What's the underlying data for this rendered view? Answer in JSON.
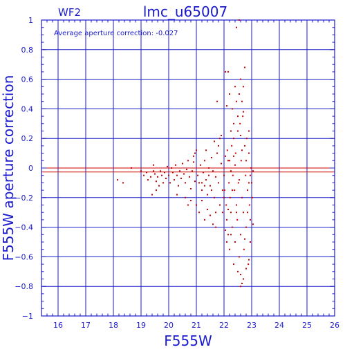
{
  "chart_data": {
    "type": "scatter",
    "title": "lmc_u65007",
    "chip": "WF2",
    "xlabel": "F555W",
    "ylabel": "F555W aperture correction",
    "annotation": "Average aperture correction: -0.027",
    "xlim": [
      15.4,
      26
    ],
    "ylim": [
      -1,
      1
    ],
    "xticks": [
      16,
      17,
      18,
      19,
      20,
      21,
      22,
      23,
      24,
      25,
      26
    ],
    "yticks": [
      -1,
      -0.8,
      -0.6,
      -0.4,
      -0.2,
      0,
      0.2,
      0.4,
      0.6,
      0.8,
      1
    ],
    "ytick_labels": [
      "−1",
      "−0.8",
      "−0.6",
      "−0.4",
      "−0.2",
      "0",
      "0.2",
      "0.4",
      "0.6",
      "0.8",
      "1"
    ],
    "grid": true,
    "reference_lines": [
      {
        "name": "zero",
        "y": 0,
        "color": "#cc0000"
      },
      {
        "name": "average",
        "y": -0.027,
        "color": "#cc0000"
      }
    ],
    "axis_color": "#1a1acc",
    "point_color": "#cc0000",
    "points": [
      [
        18.15,
        -0.08
      ],
      [
        18.35,
        -0.1
      ],
      [
        18.65,
        0.0
      ],
      [
        19.0,
        -0.02
      ],
      [
        19.1,
        -0.05
      ],
      [
        19.2,
        -0.03
      ],
      [
        19.25,
        -0.08
      ],
      [
        19.35,
        -0.06
      ],
      [
        19.45,
        -0.02
      ],
      [
        19.45,
        0.02
      ],
      [
        19.5,
        -0.04
      ],
      [
        19.55,
        -0.09
      ],
      [
        19.6,
        -0.06
      ],
      [
        19.65,
        -0.12
      ],
      [
        19.7,
        -0.02
      ],
      [
        19.75,
        -0.05
      ],
      [
        19.8,
        -0.1
      ],
      [
        19.85,
        -0.03
      ],
      [
        19.9,
        -0.07
      ],
      [
        19.95,
        0.01
      ],
      [
        19.4,
        -0.18
      ],
      [
        19.55,
        -0.15
      ],
      [
        20.0,
        -0.05
      ],
      [
        20.05,
        -0.1
      ],
      [
        20.1,
        0.0
      ],
      [
        20.15,
        -0.03
      ],
      [
        20.2,
        -0.08
      ],
      [
        20.25,
        0.02
      ],
      [
        20.3,
        -0.05
      ],
      [
        20.35,
        -0.12
      ],
      [
        20.4,
        -0.02
      ],
      [
        20.45,
        -0.07
      ],
      [
        20.5,
        0.03
      ],
      [
        20.55,
        -0.04
      ],
      [
        20.6,
        -0.1
      ],
      [
        20.65,
        -0.01
      ],
      [
        20.7,
        0.05
      ],
      [
        20.75,
        -0.06
      ],
      [
        20.8,
        -0.14
      ],
      [
        20.85,
        -0.02
      ],
      [
        20.9,
        0.04
      ],
      [
        20.95,
        -0.09
      ],
      [
        20.3,
        -0.18
      ],
      [
        20.6,
        -0.2
      ],
      [
        20.7,
        -0.25
      ],
      [
        20.8,
        -0.22
      ],
      [
        20.9,
        0.08
      ],
      [
        20.95,
        0.1
      ],
      [
        21.0,
        0.12
      ],
      [
        21.05,
        -0.05
      ],
      [
        21.1,
        -0.1
      ],
      [
        21.15,
        0.02
      ],
      [
        21.2,
        -0.15
      ],
      [
        21.25,
        -0.03
      ],
      [
        21.3,
        0.05
      ],
      [
        21.35,
        -0.08
      ],
      [
        21.4,
        -0.18
      ],
      [
        21.45,
        0.0
      ],
      [
        21.5,
        -0.12
      ],
      [
        21.55,
        0.07
      ],
      [
        21.6,
        -0.02
      ],
      [
        21.65,
        -0.2
      ],
      [
        21.7,
        -0.06
      ],
      [
        21.75,
        0.1
      ],
      [
        21.8,
        -0.1
      ],
      [
        21.85,
        -0.25
      ],
      [
        21.9,
        0.03
      ],
      [
        21.95,
        -0.15
      ],
      [
        21.0,
        -0.25
      ],
      [
        21.1,
        -0.3
      ],
      [
        21.2,
        -0.22
      ],
      [
        21.3,
        -0.35
      ],
      [
        21.4,
        -0.28
      ],
      [
        21.5,
        -0.32
      ],
      [
        21.6,
        -0.38
      ],
      [
        21.7,
        -0.3
      ],
      [
        21.8,
        0.15
      ],
      [
        21.85,
        0.2
      ],
      [
        21.9,
        0.22
      ],
      [
        21.75,
        0.45
      ],
      [
        21.2,
        -0.1
      ],
      [
        21.3,
        -0.12
      ],
      [
        21.35,
        0.12
      ],
      [
        21.45,
        -0.05
      ],
      [
        21.55,
        -0.15
      ],
      [
        21.65,
        0.18
      ],
      [
        21.95,
        -0.3
      ],
      [
        21.7,
        -0.4
      ],
      [
        22.0,
        -0.05
      ],
      [
        22.02,
        -0.15
      ],
      [
        22.05,
        0.08
      ],
      [
        22.08,
        -0.25
      ],
      [
        22.1,
        -0.35
      ],
      [
        22.12,
        0.12
      ],
      [
        22.15,
        -0.45
      ],
      [
        22.18,
        -0.1
      ],
      [
        22.2,
        0.05
      ],
      [
        22.22,
        -0.2
      ],
      [
        22.25,
        -0.3
      ],
      [
        22.28,
        0.15
      ],
      [
        22.3,
        -0.4
      ],
      [
        22.32,
        -0.05
      ],
      [
        22.35,
        0.2
      ],
      [
        22.38,
        -0.15
      ],
      [
        22.4,
        -0.5
      ],
      [
        22.42,
        0.1
      ],
      [
        22.45,
        -0.25
      ],
      [
        22.48,
        -0.35
      ],
      [
        22.5,
        0.25
      ],
      [
        22.52,
        -0.1
      ],
      [
        22.55,
        -0.6
      ],
      [
        22.58,
        0.3
      ],
      [
        22.6,
        -0.45
      ],
      [
        22.62,
        0.05
      ],
      [
        22.65,
        -0.2
      ],
      [
        22.68,
        0.35
      ],
      [
        22.7,
        -0.3
      ],
      [
        22.72,
        -0.55
      ],
      [
        22.75,
        0.15
      ],
      [
        22.78,
        -0.05
      ],
      [
        22.8,
        -0.4
      ],
      [
        22.82,
        0.2
      ],
      [
        22.85,
        -0.15
      ],
      [
        22.88,
        -0.65
      ],
      [
        22.9,
        0.1
      ],
      [
        22.92,
        -0.25
      ],
      [
        22.95,
        -0.35
      ],
      [
        22.98,
        0.0
      ],
      [
        23.0,
        -0.1
      ],
      [
        23.02,
        -0.2
      ],
      [
        23.05,
        -0.38
      ],
      [
        22.05,
        0.65
      ],
      [
        22.15,
        0.65
      ],
      [
        22.2,
        0.5
      ],
      [
        22.3,
        0.4
      ],
      [
        22.4,
        0.55
      ],
      [
        22.45,
        0.45
      ],
      [
        22.55,
        0.5
      ],
      [
        22.6,
        0.6
      ],
      [
        22.7,
        0.55
      ],
      [
        22.75,
        0.68
      ],
      [
        22.65,
        0.45
      ],
      [
        22.5,
        0.35
      ],
      [
        22.35,
        0.3
      ],
      [
        22.1,
        0.42
      ],
      [
        22.25,
        0.25
      ],
      [
        22.45,
        0.95
      ],
      [
        22.55,
        1.0
      ],
      [
        22.7,
        0.38
      ],
      [
        22.6,
        0.22
      ],
      [
        22.9,
        0.25
      ],
      [
        22.1,
        -0.5
      ],
      [
        22.2,
        -0.55
      ],
      [
        22.25,
        -0.45
      ],
      [
        22.35,
        -0.65
      ],
      [
        22.5,
        -0.7
      ],
      [
        22.6,
        -0.72
      ],
      [
        22.65,
        -0.78
      ],
      [
        22.7,
        -0.75
      ],
      [
        22.8,
        -0.68
      ],
      [
        22.9,
        -0.62
      ],
      [
        22.95,
        -0.5
      ],
      [
        22.6,
        -0.8
      ],
      [
        22.45,
        -0.3
      ],
      [
        22.3,
        -0.15
      ],
      [
        22.15,
        -0.28
      ],
      [
        22.0,
        -0.2
      ],
      [
        22.05,
        -0.42
      ],
      [
        22.85,
        -0.3
      ],
      [
        22.75,
        -0.48
      ],
      [
        22.4,
        0.02
      ],
      [
        22.55,
        -0.08
      ],
      [
        22.65,
        0.12
      ],
      [
        22.9,
        -0.1
      ],
      [
        22.35,
        0.08
      ],
      [
        22.25,
        -0.02
      ],
      [
        22.15,
        0.05
      ],
      [
        22.8,
        0.05
      ],
      [
        22.95,
        -0.05
      ],
      [
        23.05,
        -0.02
      ]
    ]
  }
}
